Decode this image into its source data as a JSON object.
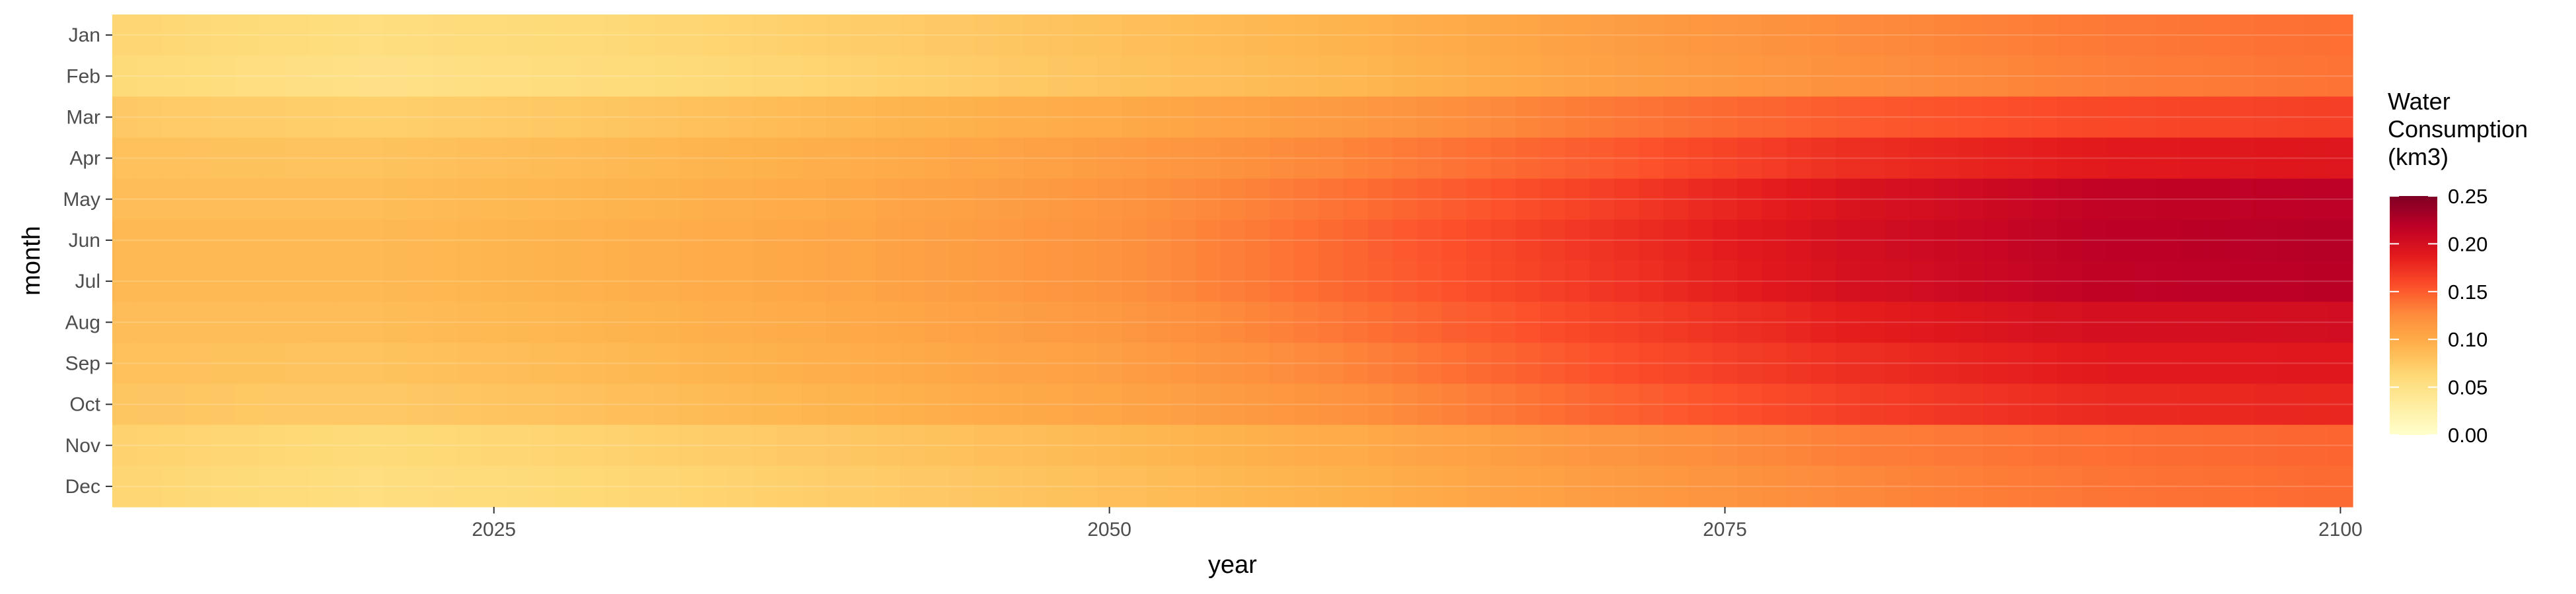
{
  "chart_data": {
    "type": "heatmap",
    "title": "",
    "xlabel": "year",
    "ylabel": "month",
    "x_range": [
      2010,
      2100
    ],
    "x_ticks": [
      "2025",
      "2050",
      "2075",
      "2100"
    ],
    "months": [
      "Jan",
      "Feb",
      "Mar",
      "Apr",
      "May",
      "Jun",
      "Jul",
      "Aug",
      "Sep",
      "Oct",
      "Nov",
      "Dec"
    ],
    "anchor_years": [
      2010,
      2020,
      2030,
      2040,
      2050,
      2060,
      2070,
      2080,
      2090,
      2100
    ],
    "values_by_month": [
      [
        0.065,
        0.055,
        0.062,
        0.072,
        0.082,
        0.093,
        0.11,
        0.125,
        0.135,
        0.14
      ],
      [
        0.06,
        0.05,
        0.058,
        0.068,
        0.08,
        0.09,
        0.108,
        0.122,
        0.132,
        0.138
      ],
      [
        0.075,
        0.07,
        0.078,
        0.09,
        0.1,
        0.115,
        0.135,
        0.15,
        0.16,
        0.165
      ],
      [
        0.082,
        0.08,
        0.088,
        0.098,
        0.112,
        0.13,
        0.15,
        0.175,
        0.188,
        0.192
      ],
      [
        0.085,
        0.085,
        0.092,
        0.102,
        0.118,
        0.14,
        0.165,
        0.195,
        0.215,
        0.218
      ],
      [
        0.088,
        0.088,
        0.095,
        0.105,
        0.12,
        0.145,
        0.172,
        0.2,
        0.218,
        0.222
      ],
      [
        0.088,
        0.088,
        0.095,
        0.105,
        0.12,
        0.145,
        0.17,
        0.198,
        0.216,
        0.22
      ],
      [
        0.085,
        0.085,
        0.092,
        0.102,
        0.115,
        0.138,
        0.162,
        0.185,
        0.2,
        0.202
      ],
      [
        0.082,
        0.08,
        0.088,
        0.098,
        0.11,
        0.13,
        0.155,
        0.175,
        0.188,
        0.19
      ],
      [
        0.078,
        0.075,
        0.083,
        0.093,
        0.105,
        0.122,
        0.145,
        0.165,
        0.178,
        0.18
      ],
      [
        0.068,
        0.06,
        0.068,
        0.078,
        0.088,
        0.1,
        0.118,
        0.132,
        0.14,
        0.145
      ],
      [
        0.065,
        0.055,
        0.063,
        0.073,
        0.083,
        0.095,
        0.112,
        0.127,
        0.137,
        0.142
      ]
    ],
    "legend": {
      "title_lines": [
        "Water",
        "Consumption",
        "(km3)"
      ],
      "range": [
        0,
        0.25
      ],
      "ticks": [
        "0.00",
        "0.05",
        "0.10",
        "0.15",
        "0.20",
        "0.25"
      ],
      "placement": "right"
    },
    "color_scale": [
      "#ffffcc",
      "#ffeda0",
      "#fed976",
      "#feb24c",
      "#fd8d3c",
      "#fc4e2a",
      "#e31a1c",
      "#bd0026",
      "#800026"
    ],
    "grid": true
  }
}
